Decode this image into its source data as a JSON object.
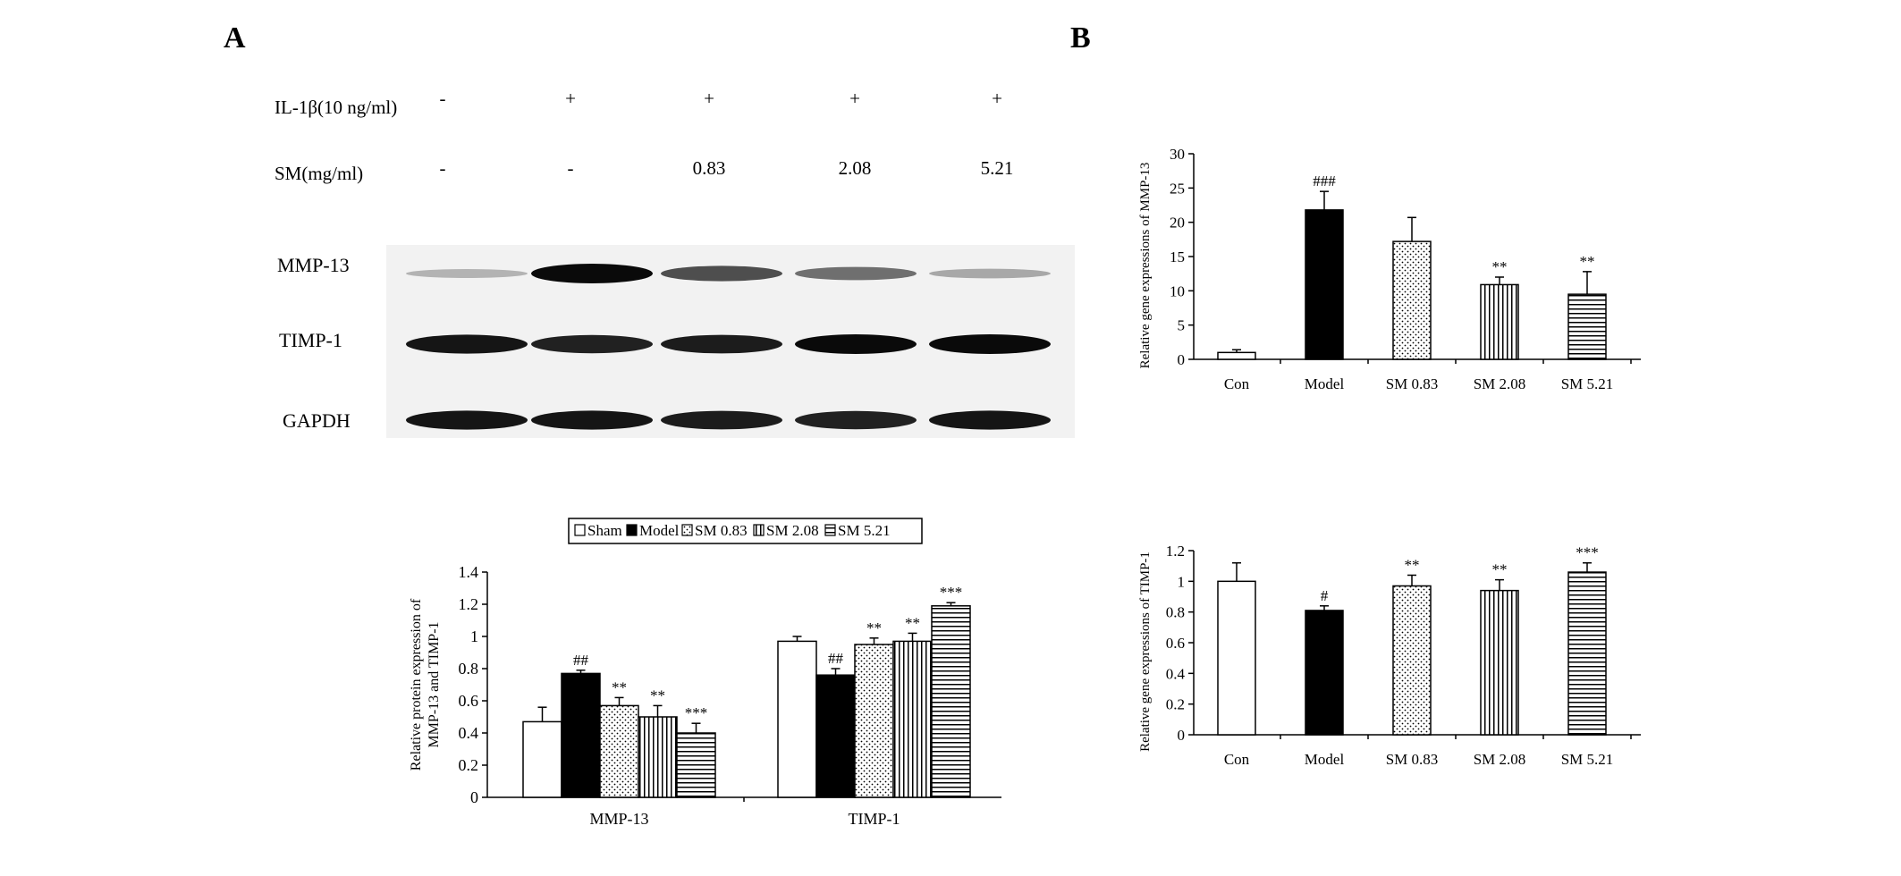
{
  "panel_labels": {
    "a": "A",
    "b": "B"
  },
  "western_blot": {
    "conditions": [
      {
        "label": "IL-1β(10 ng/ml)",
        "values": [
          "-",
          "+",
          "+",
          "+",
          "+"
        ]
      },
      {
        "label": "SM(mg/ml)",
        "values": [
          "-",
          "-",
          "0.83",
          "2.08",
          "5.21"
        ]
      }
    ],
    "bands": [
      "MMP-13",
      "TIMP-1",
      "GAPDH"
    ],
    "band_intensity": {
      "MMP-13": [
        0.25,
        1.0,
        0.7,
        0.55,
        0.3
      ],
      "TIMP-1": [
        0.95,
        0.9,
        0.92,
        1.0,
        1.0
      ],
      "GAPDH": [
        0.95,
        0.95,
        0.92,
        0.9,
        0.95
      ]
    }
  },
  "chart_data": [
    {
      "id": "protein",
      "type": "bar",
      "categories": [
        "MMP-13",
        "TIMP-1"
      ],
      "series": [
        {
          "name": "Sham",
          "values": [
            0.47,
            0.97
          ],
          "errors": [
            0.09,
            0.03
          ],
          "sig": [
            "",
            ""
          ],
          "pattern": "white"
        },
        {
          "name": "Model",
          "values": [
            0.77,
            0.76
          ],
          "errors": [
            0.02,
            0.04
          ],
          "sig": [
            "##",
            "##"
          ],
          "pattern": "black"
        },
        {
          "name": "SM 0.83",
          "values": [
            0.57,
            0.95
          ],
          "errors": [
            0.05,
            0.04
          ],
          "sig": [
            "**",
            "**"
          ],
          "pattern": "dots"
        },
        {
          "name": "SM 2.08",
          "values": [
            0.5,
            0.97
          ],
          "errors": [
            0.07,
            0.05
          ],
          "sig": [
            "**",
            "**"
          ],
          "pattern": "vlines"
        },
        {
          "name": "SM 5.21",
          "values": [
            0.4,
            1.19
          ],
          "errors": [
            0.06,
            0.02
          ],
          "sig": [
            "***",
            "***"
          ],
          "pattern": "hlines"
        }
      ],
      "ylabel_lines": [
        "Relative protein expression of",
        "MMP-13 and TIMP-1"
      ],
      "ylim": [
        0,
        1.4
      ],
      "yticks": [
        "0",
        "0.2",
        "0.4",
        "0.6",
        "0.8",
        "1",
        "1.2",
        "1.4"
      ],
      "legend": "top-center",
      "grid": false
    },
    {
      "id": "mmp13_gene",
      "type": "bar",
      "categories": [
        "Con",
        "Model",
        "SM 0.83",
        "SM 2.08",
        "SM 5.21"
      ],
      "values": [
        1.0,
        21.8,
        17.2,
        10.9,
        9.5
      ],
      "errors": [
        0.4,
        2.7,
        3.5,
        1.1,
        3.3
      ],
      "sig": [
        "",
        "###",
        "",
        "**",
        "**"
      ],
      "patterns": [
        "white",
        "black",
        "dots",
        "vlines",
        "hlines"
      ],
      "ylabel": "Relative gene expressions of MMP-13",
      "ylim": [
        0,
        30
      ],
      "yticks": [
        "0",
        "5",
        "10",
        "15",
        "20",
        "25",
        "30"
      ],
      "grid": false
    },
    {
      "id": "timp1_gene",
      "type": "bar",
      "categories": [
        "Con",
        "Model",
        "SM 0.83",
        "SM 2.08",
        "SM 5.21"
      ],
      "values": [
        1.0,
        0.81,
        0.97,
        0.94,
        1.06
      ],
      "errors": [
        0.12,
        0.03,
        0.07,
        0.07,
        0.06
      ],
      "sig": [
        "",
        "#",
        "**",
        "**",
        "***"
      ],
      "patterns": [
        "white",
        "black",
        "dots",
        "vlines",
        "hlines"
      ],
      "ylabel": "Relative gene expressions of TIMP-1",
      "ylim": [
        0,
        1.2
      ],
      "yticks": [
        "0",
        "0.2",
        "0.4",
        "0.6",
        "0.8",
        "1",
        "1.2"
      ],
      "grid": false
    }
  ]
}
